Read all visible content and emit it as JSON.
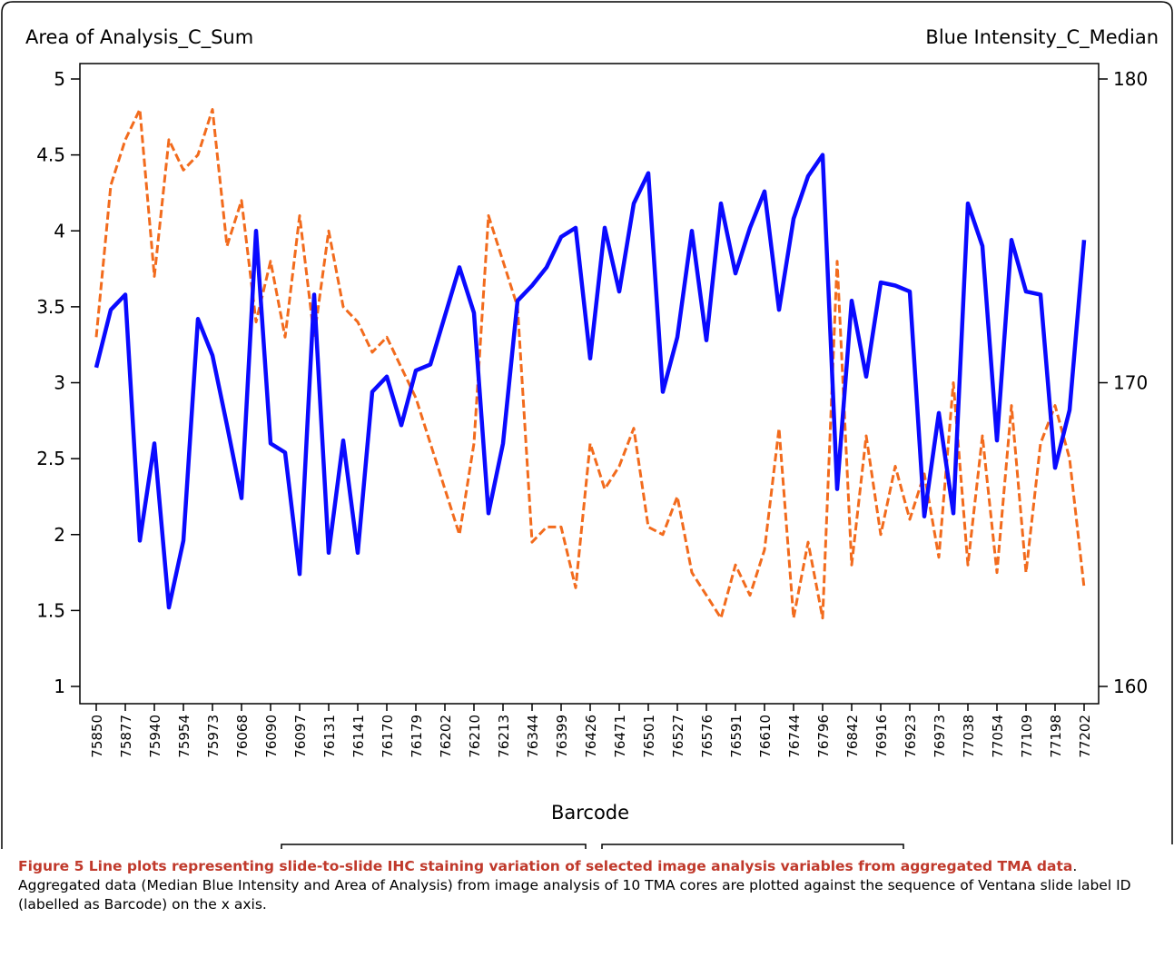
{
  "chart_data": {
    "type": "line",
    "ylabel": "Area of Analysis_C_Sum",
    "y2label": "Blue Intensity_C_Median",
    "xlabel": "Barcode",
    "categories": [
      "75850",
      null,
      "75877",
      null,
      "75940",
      null,
      "75954",
      null,
      "75973",
      null,
      "76068",
      null,
      "76090",
      null,
      "76097",
      null,
      "76131",
      null,
      "76141",
      null,
      "76170",
      null,
      "76179",
      null,
      "76202",
      null,
      "76210",
      null,
      "76213",
      null,
      "76344",
      null,
      "76399",
      null,
      "76426",
      null,
      "76471",
      null,
      "76501",
      null,
      "76527",
      null,
      "76576",
      null,
      "76591",
      null,
      "76610",
      null,
      "76744",
      null,
      "76796",
      null,
      "76842",
      null,
      "76916",
      null,
      "76923",
      null,
      "76973",
      null,
      "77038",
      null,
      "77054",
      null,
      "77109",
      null,
      "77198",
      null,
      "77202"
    ],
    "series": [
      {
        "name": "Area of Analysis_C_Sum",
        "color": "#f26b1d",
        "style": "dashed",
        "axis": "y",
        "values": [
          3.3,
          4.3,
          4.6,
          4.8,
          3.7,
          4.6,
          4.4,
          4.5,
          4.8,
          3.9,
          4.2,
          3.4,
          3.8,
          3.3,
          4.1,
          3.3,
          4.0,
          3.5,
          3.4,
          3.2,
          3.3,
          3.1,
          2.9,
          2.6,
          2.3,
          2.0,
          2.6,
          4.1,
          3.8,
          3.5,
          1.95,
          2.05,
          2.05,
          1.65,
          2.6,
          2.3,
          2.45,
          2.7,
          2.05,
          2.0,
          2.25,
          1.75,
          1.6,
          1.45,
          1.8,
          1.6,
          1.9,
          2.7,
          1.45,
          1.95,
          1.45,
          3.8,
          1.8,
          2.65,
          2.0,
          2.45,
          2.1,
          2.4,
          1.85,
          3.0,
          1.8,
          2.65,
          1.75,
          2.85,
          1.75,
          2.6,
          2.85,
          2.5,
          1.65
        ]
      },
      {
        "name": "Blue Intensity_C_Median",
        "color": "#0a0aff",
        "style": "solid",
        "axis": "y2",
        "values": [
          170.5,
          172.4,
          172.9,
          164.8,
          168.0,
          162.6,
          164.8,
          172.1,
          170.9,
          168.6,
          166.2,
          175.0,
          168.0,
          167.7,
          163.7,
          172.9,
          164.4,
          168.1,
          164.4,
          169.7,
          170.2,
          168.6,
          170.4,
          170.6,
          172.2,
          173.8,
          172.3,
          165.7,
          168.0,
          172.7,
          173.2,
          173.8,
          174.8,
          175.1,
          170.8,
          175.1,
          173.0,
          175.9,
          176.9,
          169.7,
          171.5,
          175.0,
          171.4,
          175.9,
          173.6,
          175.1,
          176.3,
          172.4,
          175.4,
          176.8,
          177.5,
          166.5,
          172.7,
          170.2,
          173.3,
          173.2,
          173.0,
          165.6,
          169.0,
          165.7,
          175.9,
          174.5,
          168.1,
          174.7,
          173.0,
          172.9,
          167.2,
          169.1,
          174.7
        ]
      }
    ],
    "ylim": [
      1,
      5
    ],
    "yticks": [
      1,
      1.5,
      2,
      2.5,
      3,
      3.5,
      4,
      4.5,
      5
    ],
    "y2lim": [
      160,
      180
    ],
    "y2ticks": [
      160,
      170,
      180
    ],
    "legend": "bottom"
  },
  "caption": {
    "title": "Figure 5 Line plots representing slide-to-slide IHC staining variation of selected image analysis variables from aggregated TMA data",
    "text": ". Aggregated data (Median Blue Intensity and Area of Analysis) from image analysis of 10 TMA cores are plotted against the sequence of Ventana slide label ID (labelled as Barcode) on the x axis."
  }
}
